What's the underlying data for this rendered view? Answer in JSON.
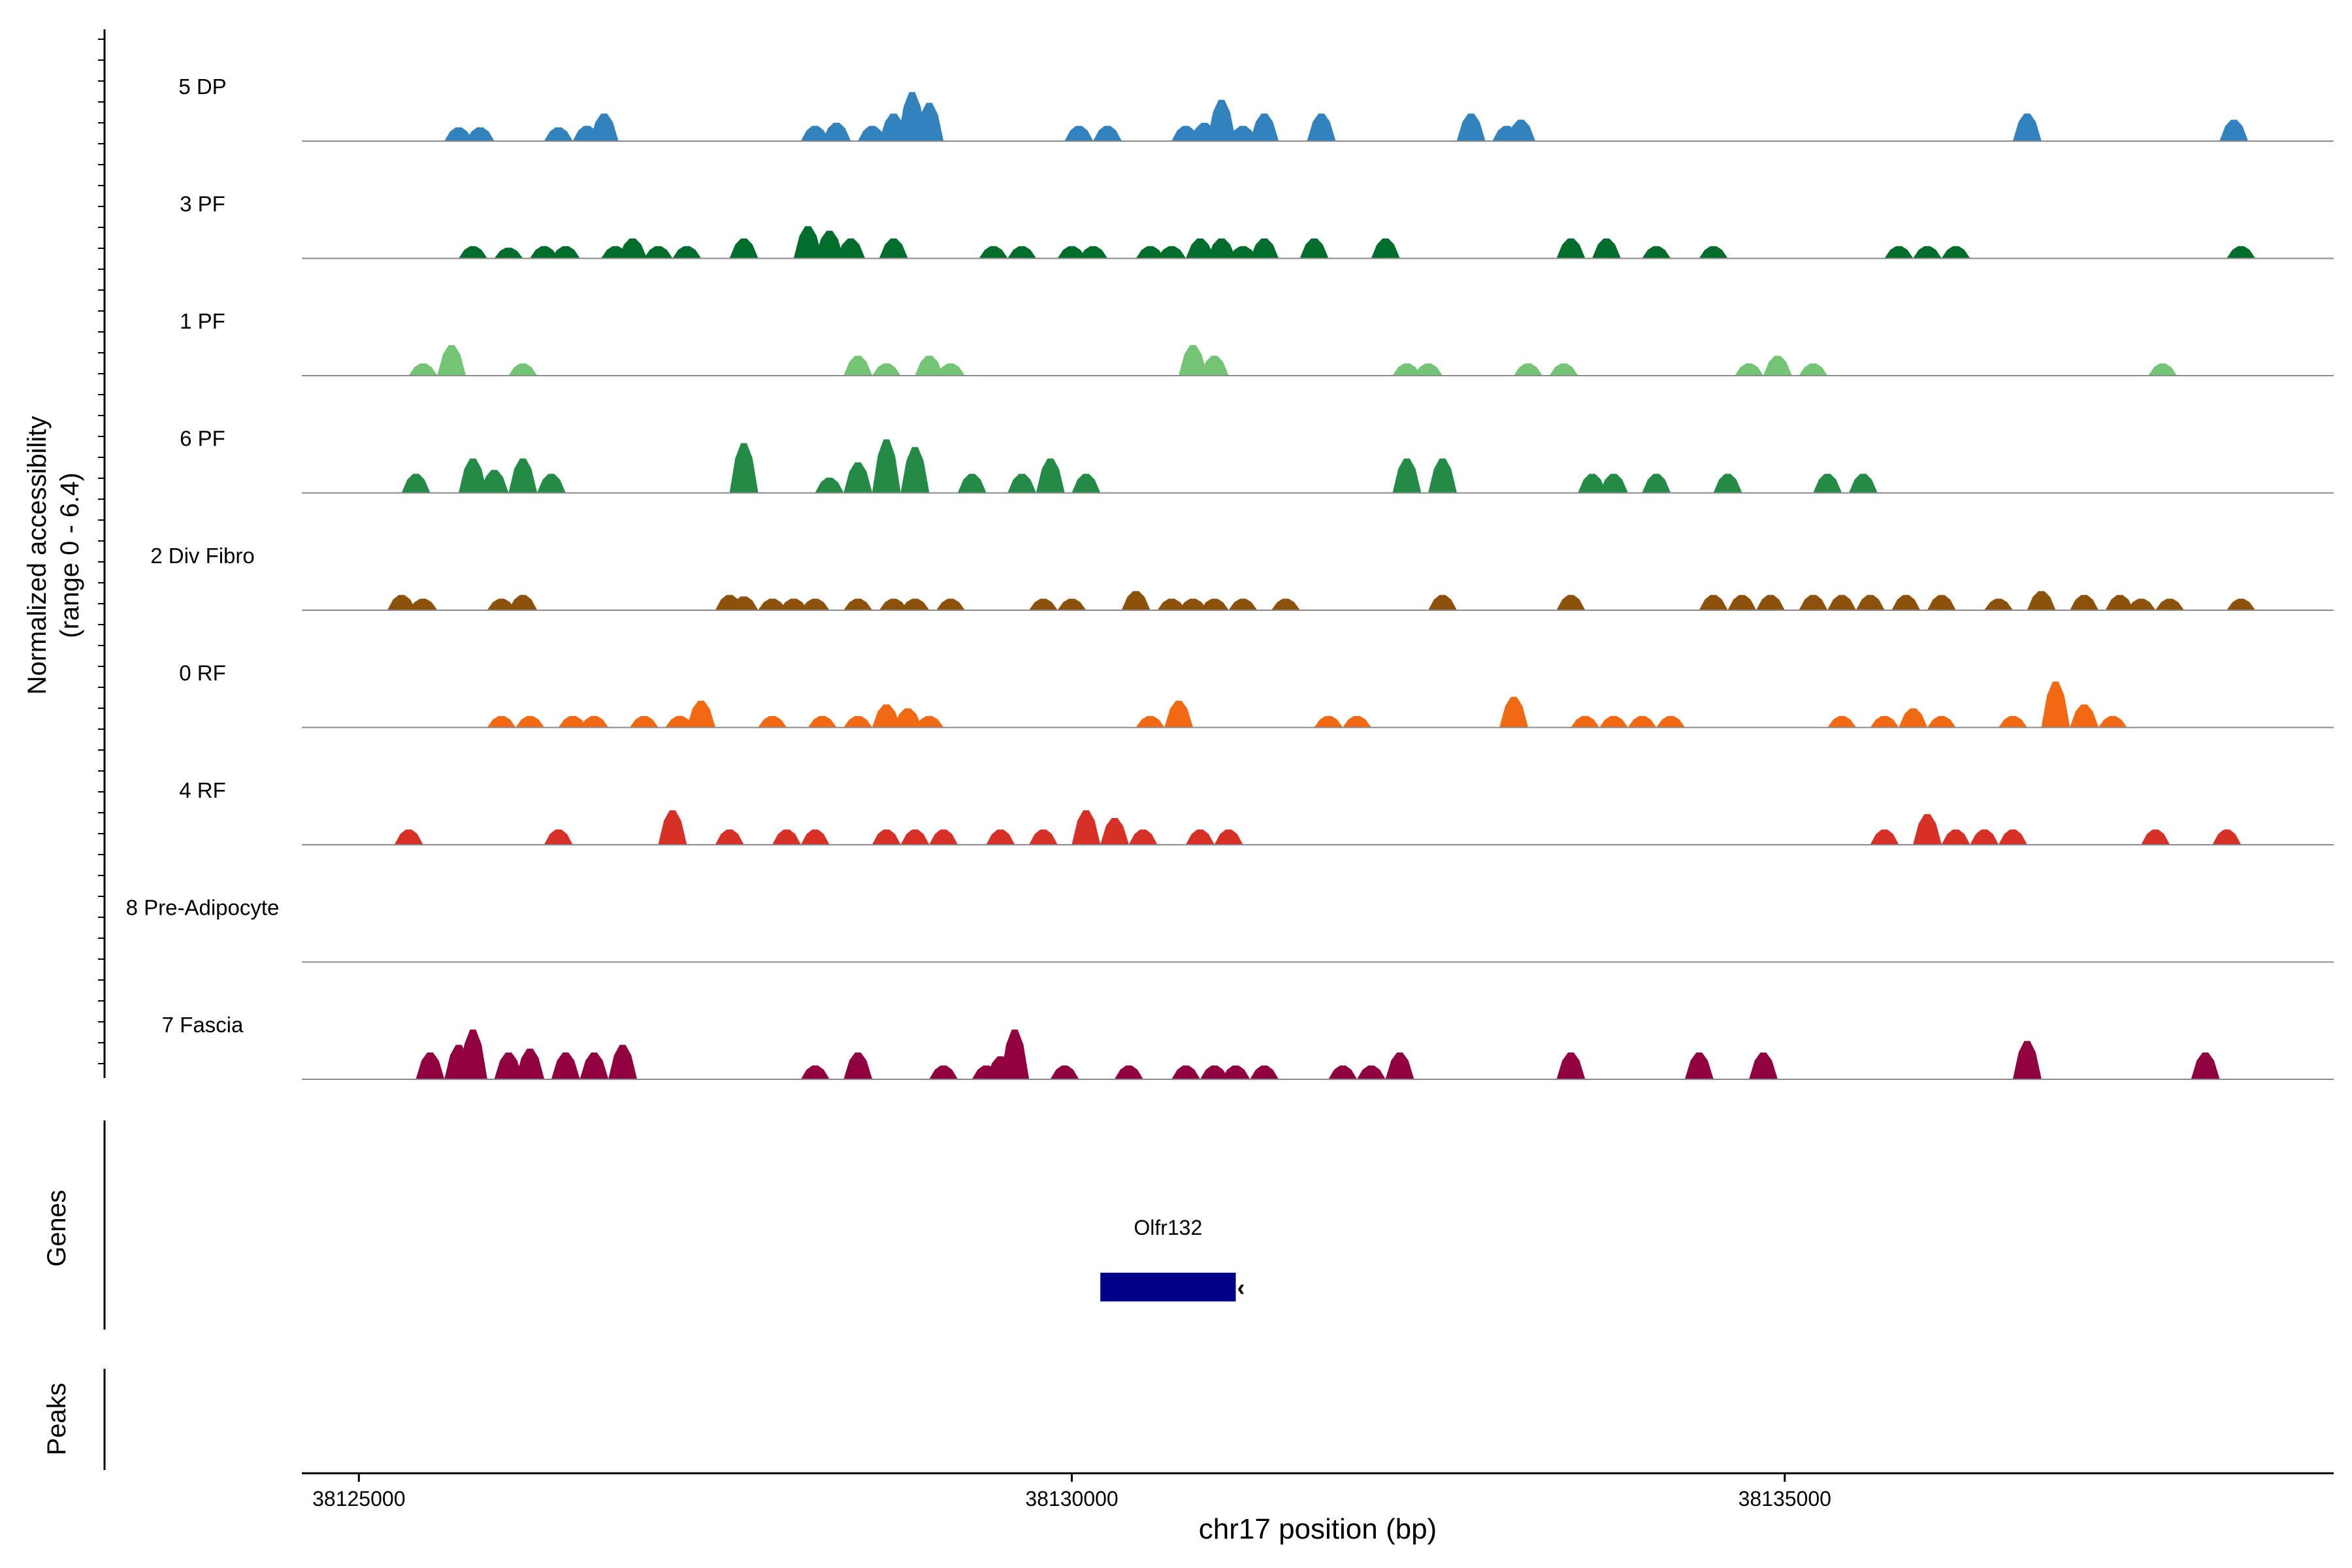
{
  "chart_data": {
    "type": "area",
    "title": "",
    "ylabel_lines": [
      "Normalized accessibility",
      "(range 0 - 6.4)"
    ],
    "ylim": [
      0,
      6.4
    ],
    "xlabel": "chr17 position (bp)",
    "xlim": [
      38124600,
      38138850
    ],
    "x_ticks": [
      38125000,
      38130000,
      38135000
    ],
    "x_tick_labels": [
      "38125000",
      "38130000",
      "38135000"
    ],
    "tracks": [
      {
        "name": "5 DP",
        "color": "#3182BD",
        "peaks": [
          [
            38125700,
            1.8
          ],
          [
            38125850,
            1.8
          ],
          [
            38126400,
            1.8
          ],
          [
            38126600,
            2.0
          ],
          [
            38126720,
            3.6
          ],
          [
            38128200,
            2.0
          ],
          [
            38128350,
            2.4
          ],
          [
            38128600,
            2.0
          ],
          [
            38128750,
            3.6
          ],
          [
            38128880,
            6.4
          ],
          [
            38129000,
            5.0
          ],
          [
            38130050,
            2.0
          ],
          [
            38130250,
            2.0
          ],
          [
            38130800,
            2.0
          ],
          [
            38130930,
            2.4
          ],
          [
            38131050,
            5.4
          ],
          [
            38131200,
            2.0
          ],
          [
            38131350,
            3.6
          ],
          [
            38131750,
            3.6
          ],
          [
            38132800,
            3.6
          ],
          [
            38133050,
            2.0
          ],
          [
            38133150,
            2.8
          ],
          [
            38136700,
            3.6
          ],
          [
            38138150,
            2.8
          ]
        ]
      },
      {
        "name": "3 PF",
        "color": "#006D2C",
        "peaks": [
          [
            38125800,
            1.6
          ],
          [
            38126050,
            1.4
          ],
          [
            38126300,
            1.6
          ],
          [
            38126450,
            1.6
          ],
          [
            38126800,
            1.6
          ],
          [
            38126920,
            2.6
          ],
          [
            38127100,
            1.6
          ],
          [
            38127300,
            1.6
          ],
          [
            38127700,
            2.6
          ],
          [
            38128150,
            4.2
          ],
          [
            38128300,
            3.6
          ],
          [
            38128450,
            2.6
          ],
          [
            38128750,
            2.6
          ],
          [
            38129450,
            1.6
          ],
          [
            38129650,
            1.6
          ],
          [
            38130000,
            1.6
          ],
          [
            38130150,
            1.6
          ],
          [
            38130550,
            1.6
          ],
          [
            38130700,
            1.6
          ],
          [
            38130900,
            2.6
          ],
          [
            38131050,
            2.6
          ],
          [
            38131200,
            1.6
          ],
          [
            38131350,
            2.6
          ],
          [
            38131700,
            2.6
          ],
          [
            38132200,
            2.6
          ],
          [
            38133500,
            2.6
          ],
          [
            38133750,
            2.6
          ],
          [
            38134100,
            1.6
          ],
          [
            38134500,
            1.6
          ],
          [
            38135800,
            1.6
          ],
          [
            38136000,
            1.6
          ],
          [
            38136200,
            1.6
          ],
          [
            38138200,
            1.6
          ]
        ]
      },
      {
        "name": "1 PF",
        "color": "#74C476",
        "peaks": [
          [
            38125450,
            1.6
          ],
          [
            38125650,
            4.0
          ],
          [
            38126150,
            1.6
          ],
          [
            38128500,
            2.6
          ],
          [
            38128700,
            1.6
          ],
          [
            38129000,
            2.6
          ],
          [
            38129150,
            1.6
          ],
          [
            38130850,
            4.0
          ],
          [
            38131000,
            2.6
          ],
          [
            38132350,
            1.6
          ],
          [
            38132500,
            1.6
          ],
          [
            38133200,
            1.6
          ],
          [
            38133450,
            1.6
          ],
          [
            38134750,
            1.6
          ],
          [
            38134950,
            2.6
          ],
          [
            38135200,
            1.6
          ],
          [
            38137650,
            1.6
          ]
        ]
      },
      {
        "name": "6 PF",
        "color": "#238B45",
        "peaks": [
          [
            38125400,
            2.5
          ],
          [
            38125800,
            4.5
          ],
          [
            38125950,
            3.0
          ],
          [
            38126150,
            4.5
          ],
          [
            38126350,
            2.5
          ],
          [
            38127700,
            6.5
          ],
          [
            38128300,
            2.0
          ],
          [
            38128500,
            4.0
          ],
          [
            38128700,
            7.0
          ],
          [
            38128900,
            6.0
          ],
          [
            38129300,
            2.5
          ],
          [
            38129650,
            2.5
          ],
          [
            38129850,
            4.5
          ],
          [
            38130100,
            2.5
          ],
          [
            38132350,
            4.5
          ],
          [
            38132600,
            4.5
          ],
          [
            38133650,
            2.5
          ],
          [
            38133800,
            2.5
          ],
          [
            38134100,
            2.5
          ],
          [
            38134600,
            2.5
          ],
          [
            38135300,
            2.5
          ],
          [
            38135550,
            2.5
          ]
        ]
      },
      {
        "name": "2 Div Fibro",
        "color": "#8C510A",
        "peaks": [
          [
            38125300,
            2.0
          ],
          [
            38125450,
            1.5
          ],
          [
            38126000,
            1.5
          ],
          [
            38126150,
            2.0
          ],
          [
            38127600,
            2.0
          ],
          [
            38127700,
            1.8
          ],
          [
            38127900,
            1.5
          ],
          [
            38128050,
            1.5
          ],
          [
            38128200,
            1.5
          ],
          [
            38128500,
            1.5
          ],
          [
            38128750,
            1.5
          ],
          [
            38128900,
            1.5
          ],
          [
            38129150,
            1.5
          ],
          [
            38129800,
            1.5
          ],
          [
            38130000,
            1.5
          ],
          [
            38130450,
            2.5
          ],
          [
            38130700,
            1.5
          ],
          [
            38130850,
            1.5
          ],
          [
            38131000,
            1.5
          ],
          [
            38131200,
            1.5
          ],
          [
            38131500,
            1.5
          ],
          [
            38132600,
            2.0
          ],
          [
            38133500,
            2.0
          ],
          [
            38134500,
            2.0
          ],
          [
            38134700,
            2.0
          ],
          [
            38134900,
            2.0
          ],
          [
            38135200,
            2.0
          ],
          [
            38135400,
            2.0
          ],
          [
            38135600,
            2.0
          ],
          [
            38135850,
            2.0
          ],
          [
            38136100,
            2.0
          ],
          [
            38136500,
            1.5
          ],
          [
            38136800,
            2.5
          ],
          [
            38137100,
            2.0
          ],
          [
            38137350,
            2.0
          ],
          [
            38137500,
            1.5
          ],
          [
            38137700,
            1.5
          ],
          [
            38138200,
            1.5
          ]
        ]
      },
      {
        "name": "0 RF",
        "color": "#F16913",
        "peaks": [
          [
            38126000,
            1.5
          ],
          [
            38126200,
            1.5
          ],
          [
            38126500,
            1.5
          ],
          [
            38126650,
            1.5
          ],
          [
            38127000,
            1.5
          ],
          [
            38127250,
            1.5
          ],
          [
            38127400,
            3.5
          ],
          [
            38127900,
            1.5
          ],
          [
            38128250,
            1.5
          ],
          [
            38128500,
            1.5
          ],
          [
            38128700,
            3.0
          ],
          [
            38128850,
            2.5
          ],
          [
            38129000,
            1.5
          ],
          [
            38130550,
            1.5
          ],
          [
            38130750,
            3.5
          ],
          [
            38131800,
            1.5
          ],
          [
            38132000,
            1.5
          ],
          [
            38133100,
            4.0
          ],
          [
            38133600,
            1.5
          ],
          [
            38133800,
            1.5
          ],
          [
            38134000,
            1.5
          ],
          [
            38134200,
            1.5
          ],
          [
            38135400,
            1.5
          ],
          [
            38135700,
            1.5
          ],
          [
            38135900,
            2.5
          ],
          [
            38136100,
            1.5
          ],
          [
            38136600,
            1.5
          ],
          [
            38136900,
            6.0
          ],
          [
            38137100,
            3.0
          ],
          [
            38137300,
            1.5
          ]
        ]
      },
      {
        "name": "4 RF",
        "color": "#D73027",
        "peaks": [
          [
            38125350,
            2.0
          ],
          [
            38126400,
            2.0
          ],
          [
            38127200,
            4.5
          ],
          [
            38127600,
            2.0
          ],
          [
            38128000,
            2.0
          ],
          [
            38128200,
            2.0
          ],
          [
            38128700,
            2.0
          ],
          [
            38128900,
            2.0
          ],
          [
            38129100,
            2.0
          ],
          [
            38129500,
            2.0
          ],
          [
            38129800,
            2.0
          ],
          [
            38130100,
            4.5
          ],
          [
            38130300,
            3.5
          ],
          [
            38130500,
            2.0
          ],
          [
            38130900,
            2.0
          ],
          [
            38131100,
            2.0
          ],
          [
            38135700,
            2.0
          ],
          [
            38136000,
            4.0
          ],
          [
            38136200,
            2.0
          ],
          [
            38136400,
            2.0
          ],
          [
            38136600,
            2.0
          ],
          [
            38137600,
            2.0
          ],
          [
            38138100,
            2.0
          ]
        ]
      },
      {
        "name": "8 Pre-Adipocyte",
        "color": "#888888",
        "peaks": []
      },
      {
        "name": "7 Fascia",
        "color": "#91003F",
        "peaks": [
          [
            38125500,
            3.5
          ],
          [
            38125700,
            4.5
          ],
          [
            38125800,
            6.5
          ],
          [
            38126050,
            3.5
          ],
          [
            38126200,
            4.0
          ],
          [
            38126450,
            3.5
          ],
          [
            38126650,
            3.5
          ],
          [
            38126850,
            4.5
          ],
          [
            38128200,
            1.8
          ],
          [
            38128500,
            3.5
          ],
          [
            38129100,
            1.8
          ],
          [
            38129400,
            1.8
          ],
          [
            38129500,
            3.0
          ],
          [
            38129600,
            6.5
          ],
          [
            38129950,
            1.8
          ],
          [
            38130400,
            1.8
          ],
          [
            38130800,
            1.8
          ],
          [
            38131000,
            1.8
          ],
          [
            38131150,
            1.8
          ],
          [
            38131350,
            1.8
          ],
          [
            38131900,
            1.8
          ],
          [
            38132100,
            1.8
          ],
          [
            38132300,
            3.5
          ],
          [
            38133500,
            3.5
          ],
          [
            38134400,
            3.5
          ],
          [
            38134850,
            3.5
          ],
          [
            38136700,
            5.0
          ],
          [
            38137950,
            3.5
          ]
        ]
      }
    ],
    "genes_panel": {
      "label": "Genes",
      "gene_name": "Olfr132",
      "start": 38130200,
      "end": 38131150,
      "strand": "-",
      "color": "#00008B"
    },
    "peaks_panel": {
      "label": "Peaks"
    }
  }
}
